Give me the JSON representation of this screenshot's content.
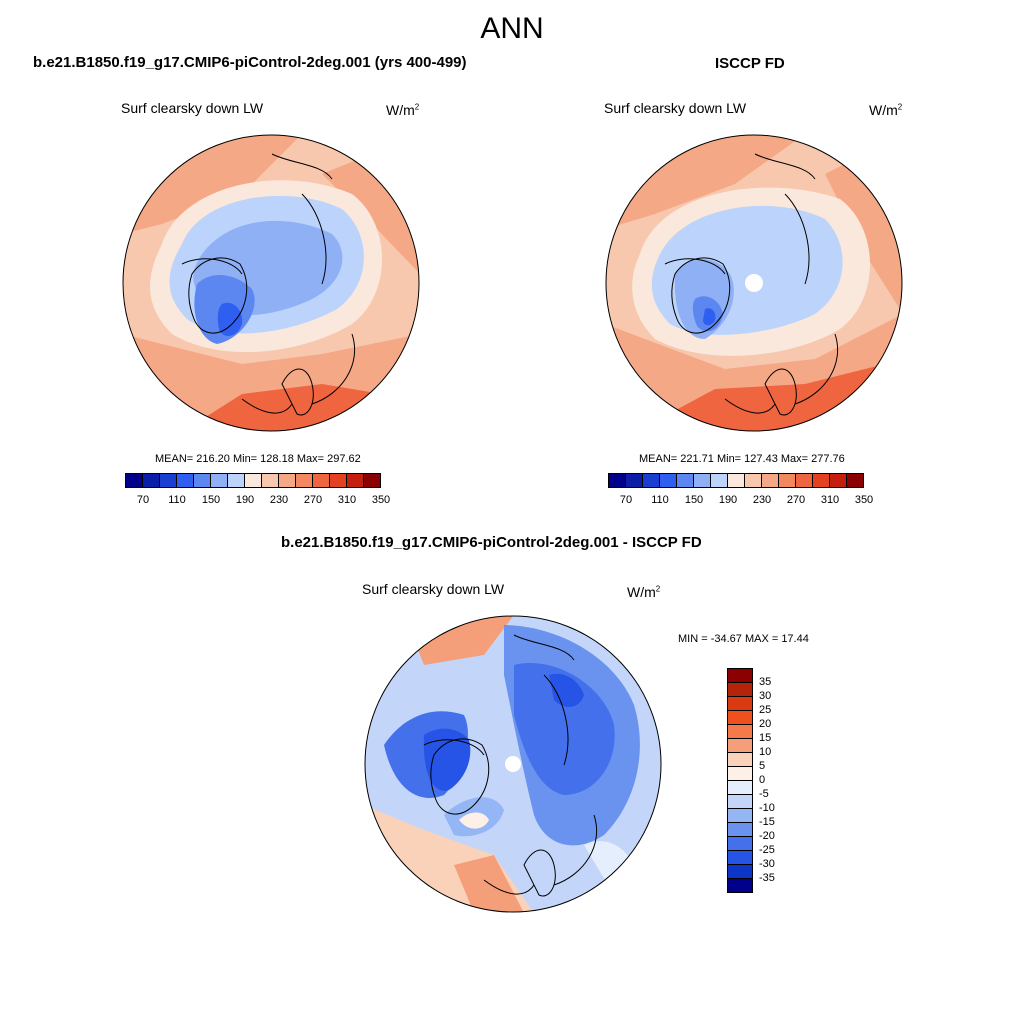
{
  "figure": {
    "season": "ANN"
  },
  "panels": {
    "model": {
      "case_title": "b.e21.B1850.f19_g17.CMIP6-piControl-2deg.001 (yrs 400-499)",
      "variable": "Surf clearsky down LW",
      "units_base": "W/m",
      "units_exp": "2",
      "stats": "MEAN= 216.20  Min= 128.18  Max= 297.62",
      "mean": 216.2,
      "min": 128.18,
      "max": 297.62
    },
    "obs": {
      "case_title": "ISCCP FD",
      "variable": "Surf clearsky down LW",
      "units_base": "W/m",
      "units_exp": "2",
      "stats": "MEAN= 221.71  Min= 127.43  Max= 277.76",
      "mean": 221.71,
      "min": 127.43,
      "max": 277.76
    },
    "diff": {
      "case_title": "b.e21.B1850.f19_g17.CMIP6-piControl-2deg.001 - ISCCP FD",
      "variable": "Surf clearsky down LW",
      "units_base": "W/m",
      "units_exp": "2",
      "stats": "MIN = -34.67 MAX =  17.44",
      "min": -34.67,
      "max": 17.44
    }
  },
  "colorbars": {
    "abs": {
      "colors": [
        "#00008b",
        "#0a1ea8",
        "#1a3fd0",
        "#2f5ff0",
        "#5d87f0",
        "#8fb0f5",
        "#bcd4fb",
        "#fbe8dc",
        "#f8c8ae",
        "#f5a886",
        "#f38760",
        "#ee6540",
        "#e34220",
        "#c41e0f",
        "#8b0000"
      ],
      "labels": [
        "70",
        "110",
        "150",
        "190",
        "230",
        "270",
        "310",
        "350"
      ]
    },
    "diff": {
      "colors": [
        "#8b0000",
        "#b3240a",
        "#d93a12",
        "#f0501e",
        "#f47a4c",
        "#f59f7a",
        "#fad2b9",
        "#fdf0e6",
        "#e4eefc",
        "#c3d6fa",
        "#94b6f5",
        "#6a92ef",
        "#4470ec",
        "#2554e6",
        "#0d36c8",
        "#00008b"
      ],
      "labels": [
        "35",
        "30",
        "25",
        "20",
        "15",
        "10",
        "5",
        "0",
        "-5",
        "-10",
        "-15",
        "-20",
        "-25",
        "-30",
        "-35"
      ]
    }
  }
}
